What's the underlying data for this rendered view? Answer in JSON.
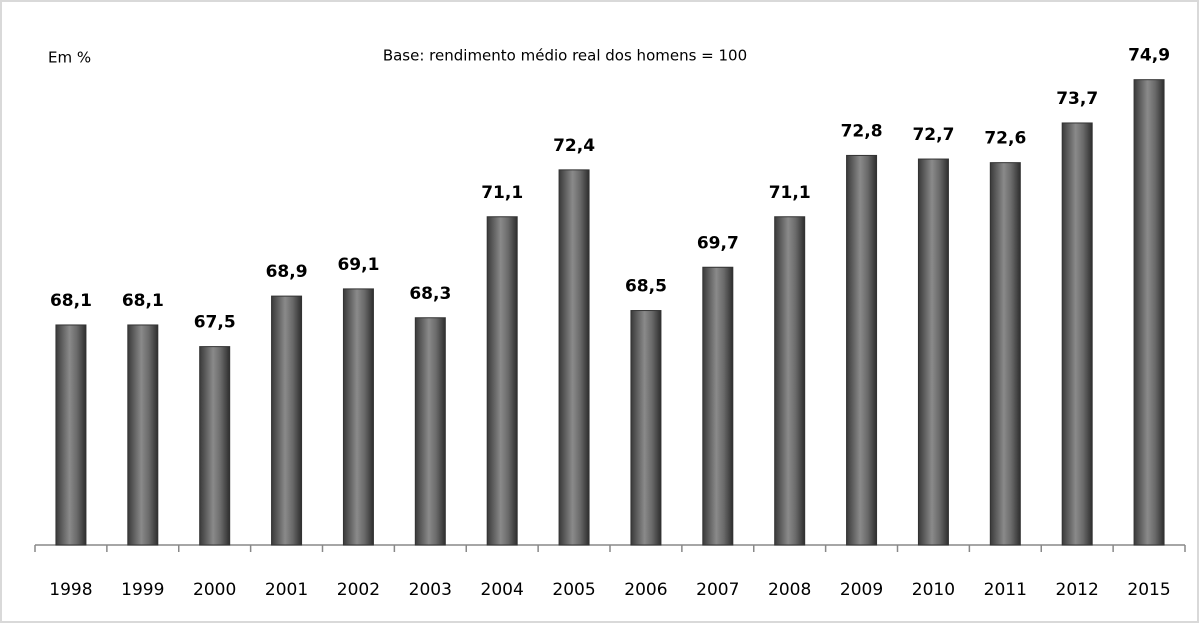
{
  "chart_data": {
    "type": "bar",
    "title": "Base: rendimento médio real dos homens = 100",
    "y_label": "Em %",
    "categories": [
      "1998",
      "1999",
      "2000",
      "2001",
      "2002",
      "2003",
      "2004",
      "2005",
      "2006",
      "2007",
      "2008",
      "2009",
      "2010",
      "2011",
      "2012",
      "2015"
    ],
    "values": [
      68.1,
      68.1,
      67.5,
      68.9,
      69.1,
      68.3,
      71.1,
      72.4,
      68.5,
      69.7,
      71.1,
      72.8,
      72.7,
      72.6,
      73.7,
      74.9
    ],
    "value_labels": [
      "68,1",
      "68,1",
      "67,5",
      "68,9",
      "69,1",
      "68,3",
      "71,1",
      "72,4",
      "68,5",
      "69,7",
      "71,1",
      "72,8",
      "72,7",
      "72,6",
      "73,7",
      "74,9"
    ],
    "color": "#6e6e6e",
    "ylim": [
      62,
      76
    ],
    "grid": false
  }
}
